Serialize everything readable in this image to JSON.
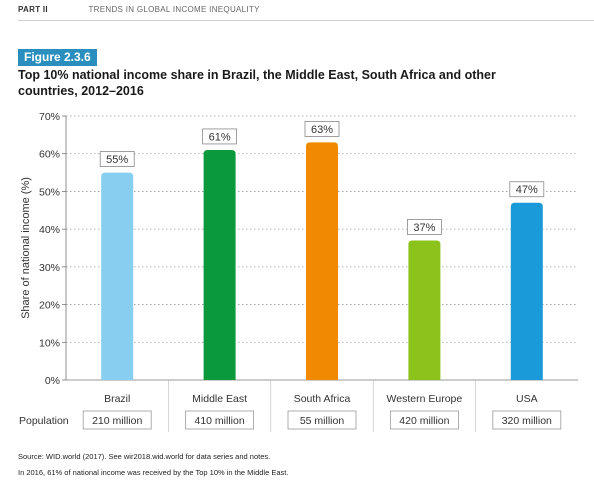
{
  "header": {
    "part": "PART II",
    "section": "TRENDS IN GLOBAL INCOME INEQUALITY"
  },
  "figure": {
    "label": "Figure 2.3.6",
    "title": "Top 10% national income share in Brazil, the Middle East, South Africa and other countries, 2012–2016"
  },
  "chart_data": {
    "type": "bar",
    "categories": [
      "Brazil",
      "Middle East",
      "South Africa",
      "Western Europe",
      "USA"
    ],
    "values": [
      55,
      61,
      63,
      37,
      47
    ],
    "data_labels": [
      "55%",
      "61%",
      "63%",
      "37%",
      "47%"
    ],
    "colors": [
      "#87cef0",
      "#0a9a3c",
      "#f28a00",
      "#8cc21c",
      "#1a9ad8"
    ],
    "ylabel": "Share of national income (%)",
    "ylim": [
      0,
      70
    ],
    "yticks": [
      0,
      10,
      20,
      30,
      40,
      50,
      60,
      70
    ],
    "ytick_labels": [
      "0%",
      "10%",
      "20%",
      "30%",
      "40%",
      "50%",
      "60%",
      "70%"
    ],
    "grid": true,
    "population_label": "Population",
    "population": [
      "210 million",
      "410 million",
      "55 million",
      "420 million",
      "320 million"
    ]
  },
  "footer": {
    "source": "Source: WID.world (2017). See wir2018.wid.world for data series and notes.",
    "note": "In 2016, 61% of national income was received by the Top 10% in the Middle East."
  }
}
